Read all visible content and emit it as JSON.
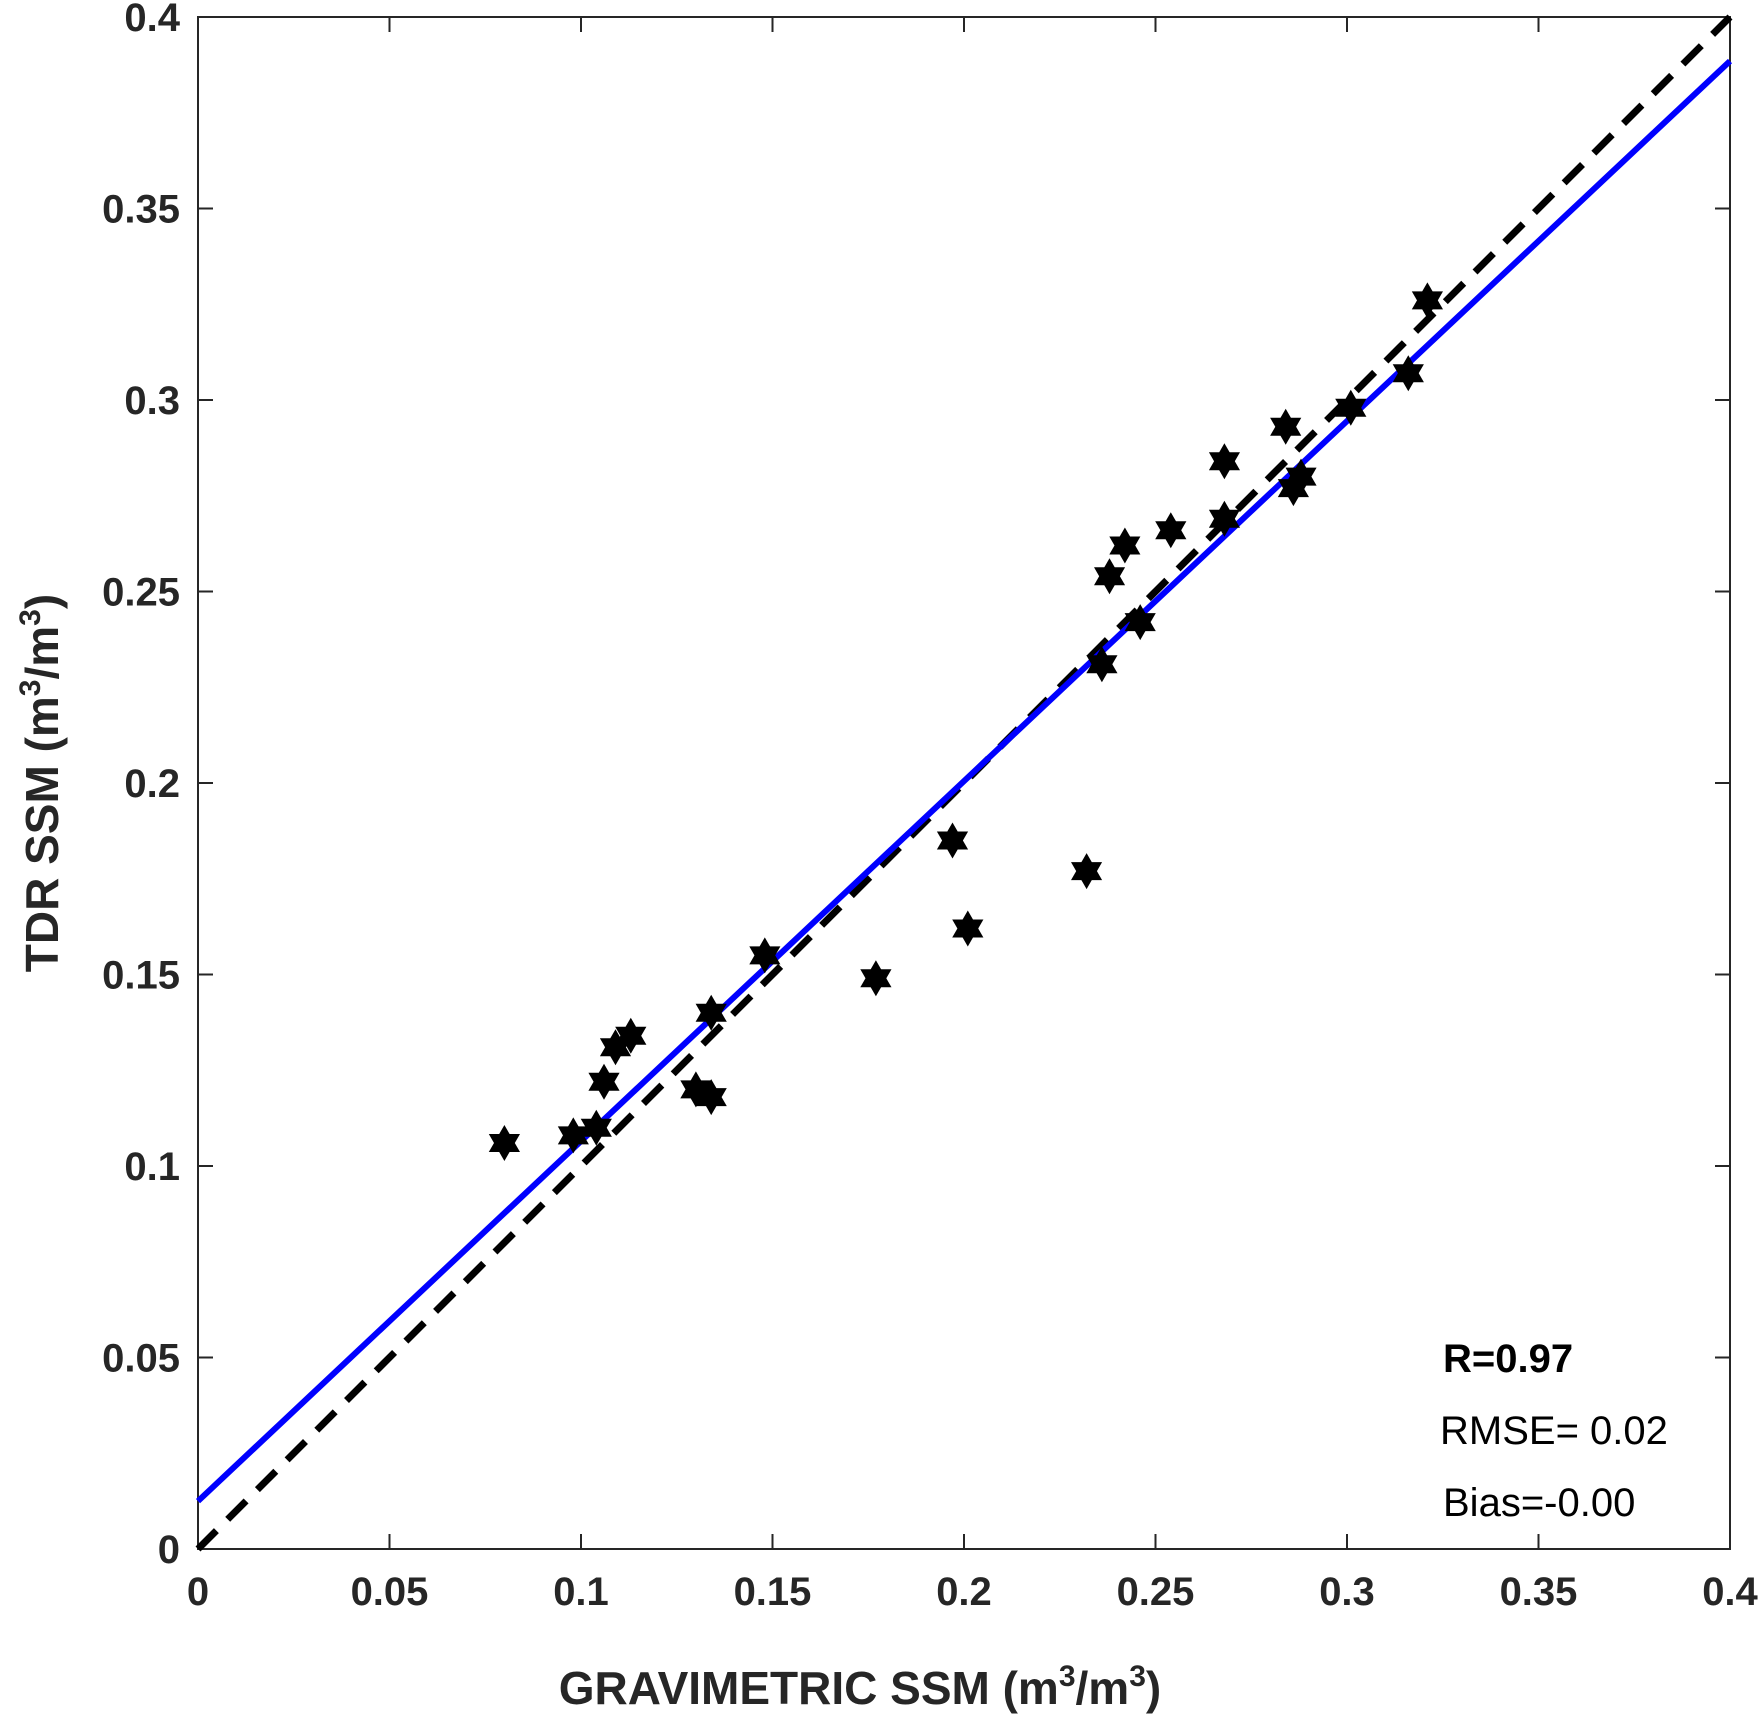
{
  "chart_data": {
    "type": "scatter",
    "xlabel": {
      "main": "GRAVIMETRIC SSM (m",
      "sup1": "3",
      "mid": "/m",
      "sup2": "3",
      "end": ")"
    },
    "ylabel": {
      "main": "TDR SSM (m",
      "sup1": "3",
      "mid": "/m",
      "sup2": "3",
      "end": ")"
    },
    "xlim": [
      0,
      0.4
    ],
    "ylim": [
      0,
      0.4
    ],
    "xticks": [
      "0",
      "0.05",
      "0.1",
      "0.15",
      "0.2",
      "0.25",
      "0.3",
      "0.35",
      "0.4"
    ],
    "yticks": [
      "0",
      "0.05",
      "0.1",
      "0.15",
      "0.2",
      "0.25",
      "0.3",
      "0.35",
      "0.4"
    ],
    "grid": false,
    "points": [
      {
        "x": 0.08,
        "y": 0.106
      },
      {
        "x": 0.098,
        "y": 0.108
      },
      {
        "x": 0.104,
        "y": 0.11
      },
      {
        "x": 0.106,
        "y": 0.122
      },
      {
        "x": 0.109,
        "y": 0.131
      },
      {
        "x": 0.113,
        "y": 0.134
      },
      {
        "x": 0.13,
        "y": 0.12
      },
      {
        "x": 0.134,
        "y": 0.118
      },
      {
        "x": 0.134,
        "y": 0.14
      },
      {
        "x": 0.148,
        "y": 0.155
      },
      {
        "x": 0.177,
        "y": 0.149
      },
      {
        "x": 0.197,
        "y": 0.185
      },
      {
        "x": 0.201,
        "y": 0.162
      },
      {
        "x": 0.232,
        "y": 0.177
      },
      {
        "x": 0.236,
        "y": 0.231
      },
      {
        "x": 0.238,
        "y": 0.254
      },
      {
        "x": 0.242,
        "y": 0.262
      },
      {
        "x": 0.246,
        "y": 0.242
      },
      {
        "x": 0.254,
        "y": 0.266
      },
      {
        "x": 0.268,
        "y": 0.284
      },
      {
        "x": 0.268,
        "y": 0.269
      },
      {
        "x": 0.284,
        "y": 0.293
      },
      {
        "x": 0.286,
        "y": 0.277
      },
      {
        "x": 0.288,
        "y": 0.28
      },
      {
        "x": 0.301,
        "y": 0.298
      },
      {
        "x": 0.316,
        "y": 0.307
      },
      {
        "x": 0.321,
        "y": 0.326
      }
    ],
    "fit_line": {
      "x": [
        0,
        0.4
      ],
      "y": [
        0.0125,
        0.3885
      ],
      "color": "#0000ff"
    },
    "one_to_one_line": {
      "x": [
        0,
        0.4
      ],
      "y": [
        0,
        0.4
      ],
      "color": "#000000",
      "style": "dashed"
    },
    "marker": {
      "shape": "hexagram",
      "color": "#000000"
    },
    "annotations": [
      "R=0.97",
      "RMSE= 0.02",
      "Bias=-0.00"
    ]
  }
}
